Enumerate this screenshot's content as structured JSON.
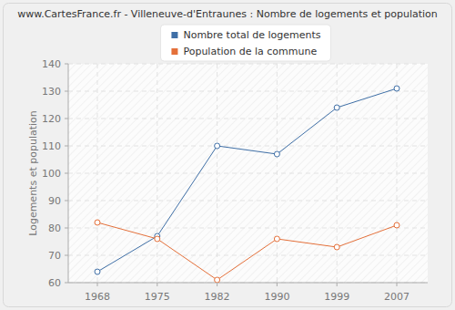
{
  "chart_data": {
    "type": "line",
    "title": "www.CartesFrance.fr - Villeneuve-d'Entraunes : Nombre de logements et population",
    "y_label": "Logements et population",
    "categories": [
      "1968",
      "1975",
      "1982",
      "1990",
      "1999",
      "2007"
    ],
    "series": [
      {
        "name": "Nombre total de logements",
        "color": "#3f6fa6",
        "marker": "circle",
        "values": [
          64,
          77,
          110,
          107,
          124,
          131
        ]
      },
      {
        "name": "Population de la commune",
        "color": "#e4703a",
        "marker": "circle",
        "values": [
          82,
          76,
          61,
          76,
          73,
          81
        ]
      }
    ],
    "ylim": [
      60,
      140
    ],
    "yticks": [
      60,
      70,
      80,
      90,
      100,
      110,
      120,
      130,
      140
    ],
    "grid": true,
    "legend": "top"
  }
}
